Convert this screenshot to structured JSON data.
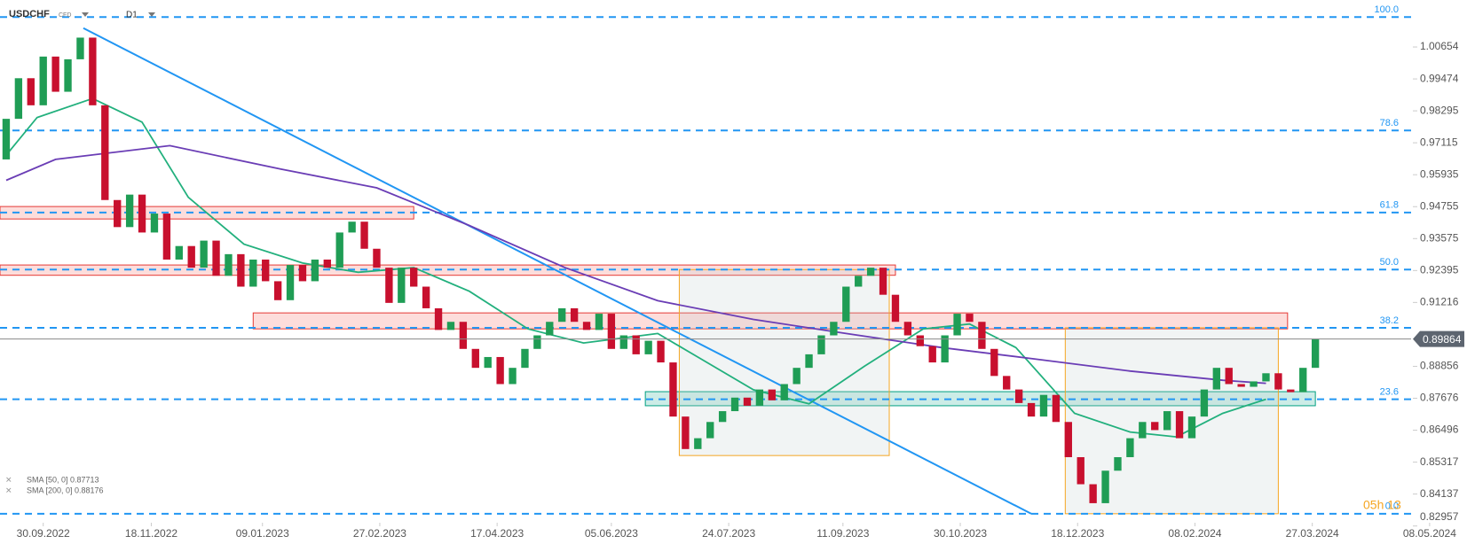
{
  "chart_data": {
    "type": "candlestick",
    "symbol": "USDCHF",
    "instrument": "CFD",
    "timeframe": "D1",
    "timer": "05h 13",
    "xlim": [
      0,
      457
    ],
    "ylim": [
      0.8275,
      1.0239
    ],
    "xticks": [
      {
        "value": 14,
        "label": "30.09.2022"
      },
      {
        "value": 49,
        "label": "18.11.2022"
      },
      {
        "value": 85,
        "label": "09.01.2023"
      },
      {
        "value": 123,
        "label": "27.02.2023"
      },
      {
        "value": 161,
        "label": "17.04.2023"
      },
      {
        "value": 198,
        "label": "05.06.2023"
      },
      {
        "value": 236,
        "label": "24.07.2023"
      },
      {
        "value": 273,
        "label": "11.09.2023"
      },
      {
        "value": 311,
        "label": "30.10.2023"
      },
      {
        "value": 349,
        "label": "18.12.2023"
      },
      {
        "value": 387,
        "label": "08.02.2024"
      },
      {
        "value": 425,
        "label": "27.03.2024"
      },
      {
        "value": 463,
        "label": "08.05.2024"
      }
    ],
    "yticks": [
      1.00654,
      0.99474,
      0.98295,
      0.97115,
      0.95935,
      0.94755,
      0.93575,
      0.92395,
      0.91216,
      0.88856,
      0.87676,
      0.86496,
      0.85317,
      0.84137,
      0.82957
    ],
    "x": [
      2,
      6,
      10,
      14,
      18,
      22,
      26,
      30,
      34,
      38,
      42,
      46,
      50,
      54,
      58,
      62,
      66,
      70,
      74,
      78,
      82,
      86,
      90,
      94,
      98,
      102,
      106,
      110,
      114,
      118,
      122,
      126,
      130,
      134,
      138,
      142,
      146,
      150,
      154,
      158,
      162,
      166,
      170,
      174,
      178,
      182,
      186,
      190,
      194,
      198,
      202,
      206,
      210,
      214,
      218,
      222,
      226,
      230,
      234,
      238,
      242,
      246,
      250,
      254,
      258,
      262,
      266,
      270,
      274,
      278,
      282,
      286,
      290,
      294,
      298,
      302,
      306,
      310,
      314,
      318,
      322,
      326,
      330,
      334,
      338,
      342,
      346,
      350,
      354,
      358,
      362,
      366,
      370,
      374,
      378,
      382,
      386,
      390,
      394,
      398,
      402,
      406,
      410,
      414,
      418,
      422,
      426
    ],
    "open": [
      0.965,
      0.98,
      0.995,
      0.985,
      1.003,
      0.99,
      1.002,
      1.01,
      0.985,
      0.95,
      0.94,
      0.952,
      0.938,
      0.945,
      0.928,
      0.933,
      0.925,
      0.935,
      0.922,
      0.93,
      0.918,
      0.928,
      0.92,
      0.913,
      0.926,
      0.92,
      0.928,
      0.925,
      0.938,
      0.942,
      0.932,
      0.925,
      0.912,
      0.925,
      0.918,
      0.91,
      0.902,
      0.905,
      0.895,
      0.888,
      0.892,
      0.882,
      0.888,
      0.895,
      0.9,
      0.905,
      0.91,
      0.905,
      0.902,
      0.908,
      0.895,
      0.9,
      0.893,
      0.898,
      0.89,
      0.87,
      0.858,
      0.862,
      0.868,
      0.872,
      0.877,
      0.874,
      0.88,
      0.876,
      0.882,
      0.888,
      0.893,
      0.9,
      0.905,
      0.918,
      0.922,
      0.925,
      0.915,
      0.905,
      0.9,
      0.896,
      0.89,
      0.9,
      0.908,
      0.905,
      0.895,
      0.885,
      0.88,
      0.875,
      0.87,
      0.878,
      0.868,
      0.855,
      0.845,
      0.838,
      0.85,
      0.855,
      0.862,
      0.868,
      0.865,
      0.872,
      0.862,
      0.87,
      0.88,
      0.888,
      0.882,
      0.881,
      0.883,
      0.886,
      0.88,
      0.879,
      0.888
    ],
    "close": [
      0.98,
      0.995,
      0.985,
      1.003,
      0.99,
      1.002,
      1.01,
      0.985,
      0.95,
      0.94,
      0.952,
      0.938,
      0.945,
      0.928,
      0.933,
      0.925,
      0.935,
      0.922,
      0.93,
      0.918,
      0.928,
      0.92,
      0.913,
      0.926,
      0.92,
      0.928,
      0.925,
      0.938,
      0.942,
      0.932,
      0.925,
      0.912,
      0.925,
      0.918,
      0.91,
      0.902,
      0.905,
      0.895,
      0.888,
      0.892,
      0.882,
      0.888,
      0.895,
      0.9,
      0.905,
      0.91,
      0.905,
      0.902,
      0.908,
      0.895,
      0.9,
      0.893,
      0.898,
      0.89,
      0.87,
      0.858,
      0.862,
      0.868,
      0.872,
      0.877,
      0.874,
      0.88,
      0.876,
      0.882,
      0.888,
      0.893,
      0.9,
      0.905,
      0.918,
      0.922,
      0.925,
      0.915,
      0.905,
      0.9,
      0.896,
      0.89,
      0.9,
      0.908,
      0.905,
      0.895,
      0.885,
      0.88,
      0.875,
      0.87,
      0.878,
      0.868,
      0.855,
      0.845,
      0.838,
      0.85,
      0.855,
      0.862,
      0.868,
      0.865,
      0.872,
      0.862,
      0.87,
      0.88,
      0.888,
      0.882,
      0.881,
      0.883,
      0.886,
      0.88,
      0.879,
      0.888,
      0.89864
    ],
    "up_color": "#1f9d55",
    "down_color": "#c8102e",
    "sma": [
      {
        "name": "SMA [50, 0] 0.87713",
        "color": "#22b07d",
        "x": [
          2,
          12,
          30,
          46,
          61,
          79,
          98,
          116,
          134,
          152,
          171,
          189,
          213,
          226,
          244,
          262,
          280,
          299,
          314,
          329,
          348,
          366,
          381,
          396,
          410
        ],
        "values": [
          0.9666,
          0.9805,
          0.9875,
          0.9788,
          0.951,
          0.9337,
          0.9267,
          0.9233,
          0.925,
          0.9163,
          0.9024,
          0.8972,
          0.9007,
          0.892,
          0.8799,
          0.8747,
          0.8886,
          0.9024,
          0.9042,
          0.8955,
          0.8712,
          0.8643,
          0.8625,
          0.8712,
          0.8764
        ]
      },
      {
        "name": "SMA [200, 0] 0.88176",
        "color": "#6a3db5",
        "x": [
          2,
          18,
          55,
          91,
          122,
          152,
          183,
          213,
          244,
          274,
          305,
          335,
          366,
          396,
          410
        ],
        "values": [
          0.9573,
          0.965,
          0.9701,
          0.9614,
          0.9545,
          0.9406,
          0.925,
          0.9128,
          0.9059,
          0.9007,
          0.8955,
          0.8913,
          0.8868,
          0.8834,
          0.8823
        ]
      }
    ],
    "trendline": {
      "color": "#2196f3",
      "x": [
        27,
        334
      ],
      "values": [
        1.0135,
        0.8341
      ]
    },
    "fib_color": "#2196f3",
    "fib_levels": [
      {
        "label": "100.0",
        "price": 1.0176
      },
      {
        "label": "78.6",
        "price": 0.9757
      },
      {
        "label": "61.8",
        "price": 0.9454
      },
      {
        "label": "50.0",
        "price": 0.9243
      },
      {
        "label": "38.2",
        "price": 0.9028
      },
      {
        "label": "23.6",
        "price": 0.8764
      },
      {
        "label": "0.0",
        "price": 0.8341
      }
    ],
    "zones": [
      {
        "kind": "resistance",
        "x": [
          0,
          134
        ],
        "price": [
          0.9476,
          0.943
        ]
      },
      {
        "kind": "resistance",
        "x": [
          0,
          290
        ],
        "price": [
          0.926,
          0.9222
        ]
      },
      {
        "kind": "resistance",
        "x": [
          82,
          417
        ],
        "price": [
          0.9083,
          0.9024
        ]
      },
      {
        "kind": "support",
        "x": [
          209,
          426
        ],
        "price": [
          0.8792,
          0.874
        ]
      },
      {
        "kind": "range",
        "x": [
          220,
          288
        ],
        "price": [
          0.9243,
          0.8556
        ]
      },
      {
        "kind": "range",
        "x": [
          345,
          414
        ],
        "price": [
          0.9028,
          0.8341
        ]
      }
    ]
  }
}
